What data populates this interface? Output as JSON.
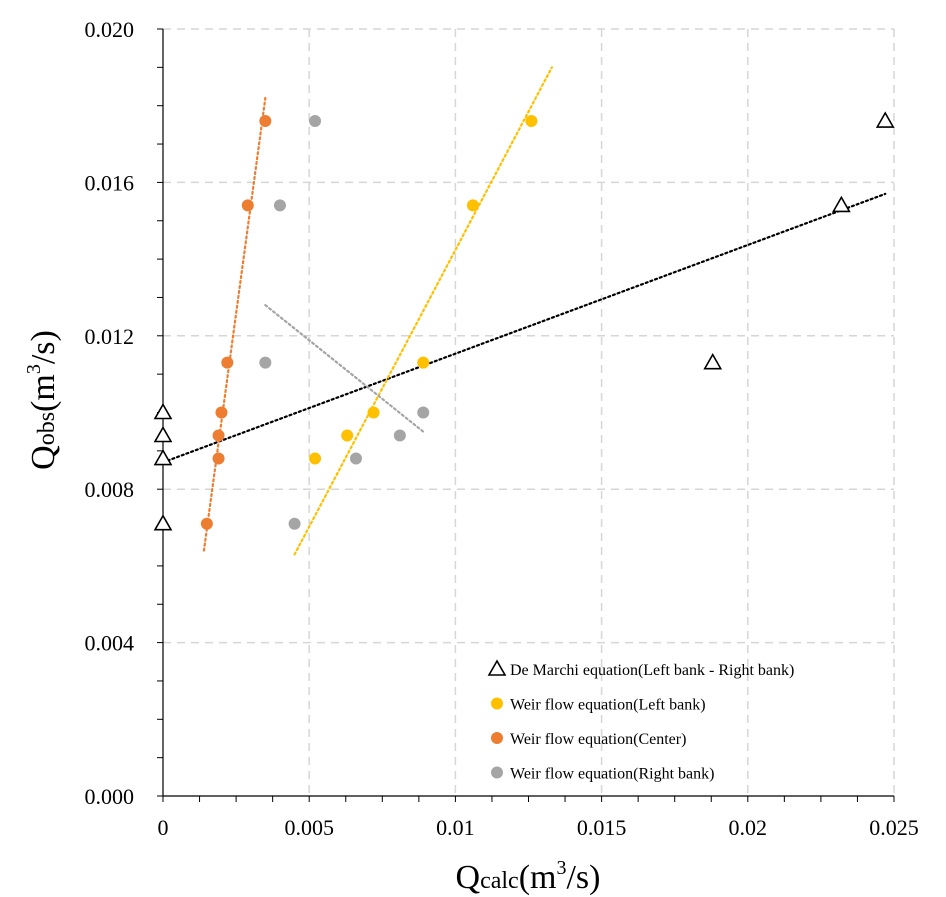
{
  "chart_data": {
    "type": "scatter",
    "xlabel": {
      "main": "Q",
      "sub": "calc",
      "unit_pre": "(m",
      "unit_sup": "3",
      "unit_post": "/s)"
    },
    "ylabel": {
      "main": "Q",
      "sub": "obs",
      "unit_pre": "(m",
      "unit_sup": "3",
      "unit_post": "/s)"
    },
    "xlim": [
      0,
      0.025
    ],
    "ylim": [
      0,
      0.02
    ],
    "x_ticks": [
      0,
      0.005,
      0.01,
      0.015,
      0.02,
      0.025
    ],
    "x_tick_labels": [
      "0",
      "0.005",
      "0.01",
      "0.015",
      "0.02",
      "0.025"
    ],
    "y_ticks": [
      0,
      0.004,
      0.008,
      0.012,
      0.016,
      0.02
    ],
    "y_tick_labels": [
      "0.000",
      "0.004",
      "0.008",
      "0.012",
      "0.016",
      "0.020"
    ],
    "grid": true,
    "legend_position": "bottom-right",
    "series": [
      {
        "name": "De Marchi equation(Left bank - Right bank)",
        "marker": "triangle-open",
        "color": "#000000",
        "points": [
          [
            0.0,
            0.0071
          ],
          [
            0.0,
            0.0088
          ],
          [
            0.0,
            0.0094
          ],
          [
            0.0,
            0.01
          ],
          [
            0.0188,
            0.0113
          ],
          [
            0.0232,
            0.0154
          ],
          [
            0.0247,
            0.0176
          ]
        ],
        "trendline": {
          "x": [
            0.0,
            0.0247
          ],
          "y": [
            0.0087,
            0.0157
          ]
        }
      },
      {
        "name": "Weir flow equation(Left bank)",
        "marker": "circle",
        "color": "#FFC000",
        "points": [
          [
            0.0052,
            0.0088
          ],
          [
            0.0063,
            0.0094
          ],
          [
            0.0072,
            0.01
          ],
          [
            0.0089,
            0.0113
          ],
          [
            0.0106,
            0.0154
          ],
          [
            0.0126,
            0.0176
          ]
        ],
        "trendline": {
          "x": [
            0.0045,
            0.0133
          ],
          "y": [
            0.0063,
            0.019
          ]
        }
      },
      {
        "name": "Weir flow equation(Center)",
        "marker": "circle",
        "color": "#ED7D31",
        "points": [
          [
            0.0015,
            0.0071
          ],
          [
            0.0019,
            0.0088
          ],
          [
            0.0019,
            0.0094
          ],
          [
            0.002,
            0.01
          ],
          [
            0.0022,
            0.0113
          ],
          [
            0.0029,
            0.0154
          ],
          [
            0.0035,
            0.0176
          ]
        ],
        "trendline": {
          "x": [
            0.0014,
            0.0035
          ],
          "y": [
            0.0064,
            0.0182
          ]
        }
      },
      {
        "name": "Weir flow equation(Right bank)",
        "marker": "circle",
        "color": "#A5A5A5",
        "points": [
          [
            0.0045,
            0.0071
          ],
          [
            0.0066,
            0.0088
          ],
          [
            0.0081,
            0.0094
          ],
          [
            0.0089,
            0.01
          ],
          [
            0.0035,
            0.0113
          ],
          [
            0.004,
            0.0154
          ],
          [
            0.0052,
            0.0176
          ]
        ],
        "trendline": {
          "x": [
            0.0035,
            0.0089
          ],
          "y": [
            0.0128,
            0.0095
          ]
        }
      }
    ]
  }
}
